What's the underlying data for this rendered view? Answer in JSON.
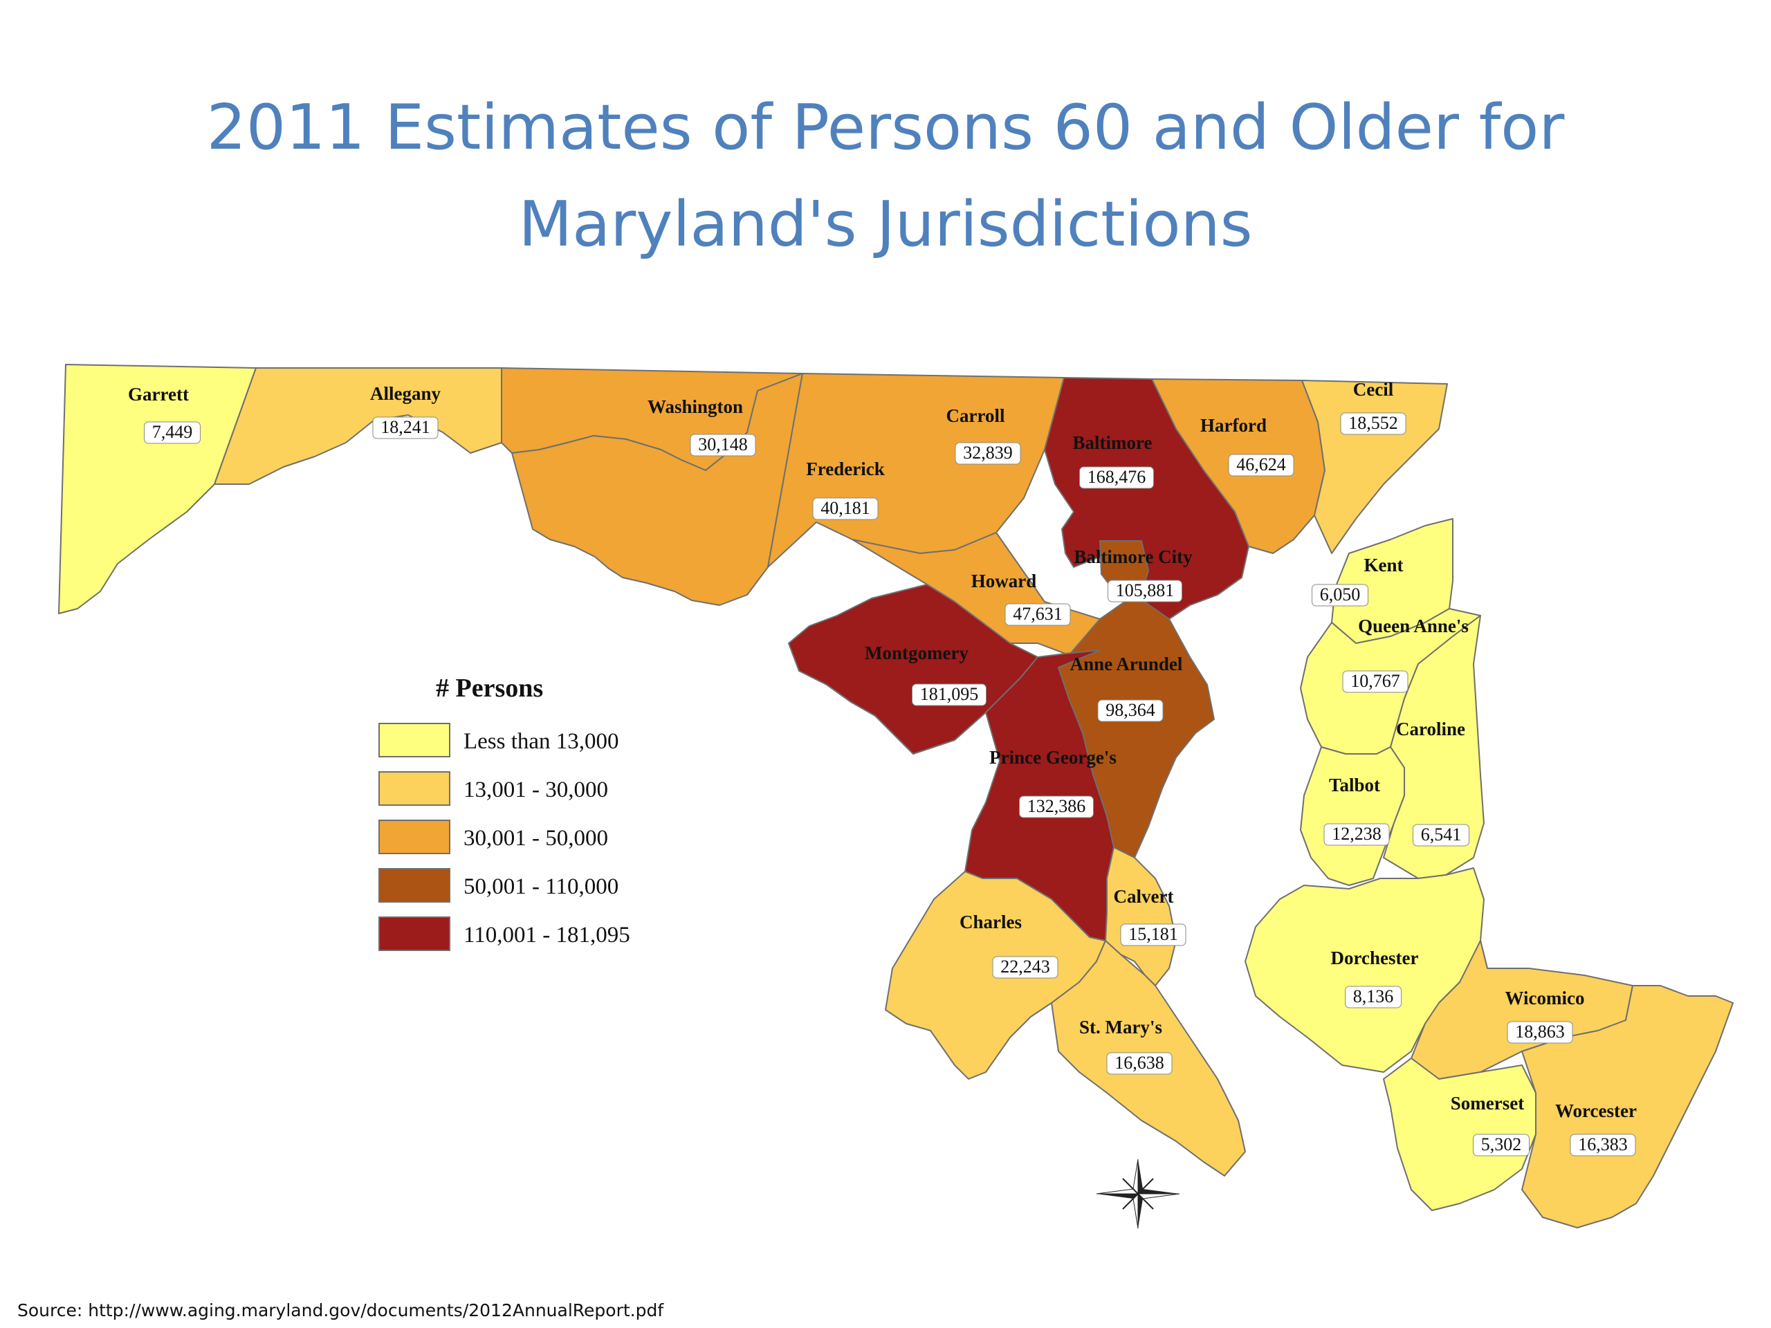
{
  "title": {
    "line1": "2011 Estimates of Persons 60 and Older for",
    "line2": "Maryland's Jurisdictions"
  },
  "colors": {
    "tier1": "#ffff7f",
    "tier2": "#fcd15c",
    "tier3": "#f0a535",
    "tier4": "#ab5413",
    "tier5": "#9c1b1b",
    "title": "#4f81bd",
    "border": "#6f6f6f"
  },
  "legend": {
    "title": "# Persons",
    "items": [
      {
        "label": "Less than 13,000",
        "color": "#ffff7f"
      },
      {
        "label": "13,001 - 30,000",
        "color": "#fcd15c"
      },
      {
        "label": "30,001 - 50,000",
        "color": "#f0a535"
      },
      {
        "label": "50,001 - 110,000",
        "color": "#ab5413"
      },
      {
        "label": "110,001 - 181,095",
        "color": "#9c1b1b"
      }
    ]
  },
  "jurisdictions": [
    {
      "name": "Garrett",
      "value": "7,449",
      "tier": 1
    },
    {
      "name": "Allegany",
      "value": "18,241",
      "tier": 2
    },
    {
      "name": "Washington",
      "value": "30,148",
      "tier": 3
    },
    {
      "name": "Frederick",
      "value": "40,181",
      "tier": 3
    },
    {
      "name": "Carroll",
      "value": "32,839",
      "tier": 3
    },
    {
      "name": "Baltimore",
      "value": "168,476",
      "tier": 5
    },
    {
      "name": "Harford",
      "value": "46,624",
      "tier": 3
    },
    {
      "name": "Cecil",
      "value": "18,552",
      "tier": 2
    },
    {
      "name": "Baltimore City",
      "value": "105,881",
      "tier": 4
    },
    {
      "name": "Howard",
      "value": "47,631",
      "tier": 3
    },
    {
      "name": "Montgomery",
      "value": "181,095",
      "tier": 5
    },
    {
      "name": "Anne Arundel",
      "value": "98,364",
      "tier": 4
    },
    {
      "name": "Prince George's",
      "value": "132,386",
      "tier": 5
    },
    {
      "name": "Kent",
      "value": "6,050",
      "tier": 1
    },
    {
      "name": "Queen Anne's",
      "value": "10,767",
      "tier": 1
    },
    {
      "name": "Caroline",
      "value": "6,541",
      "tier": 1
    },
    {
      "name": "Talbot",
      "value": "12,238",
      "tier": 1
    },
    {
      "name": "Calvert",
      "value": "15,181",
      "tier": 2
    },
    {
      "name": "Charles",
      "value": "22,243",
      "tier": 2
    },
    {
      "name": "St. Mary's",
      "value": "16,638",
      "tier": 2
    },
    {
      "name": "Dorchester",
      "value": "8,136",
      "tier": 1
    },
    {
      "name": "Wicomico",
      "value": "18,863",
      "tier": 2
    },
    {
      "name": "Somerset",
      "value": "5,302",
      "tier": 1
    },
    {
      "name": "Worcester",
      "value": "16,383",
      "tier": 2
    }
  ],
  "source": "Source: http://www.aging.maryland.gov/documents/2012AnnualReport.pdf"
}
